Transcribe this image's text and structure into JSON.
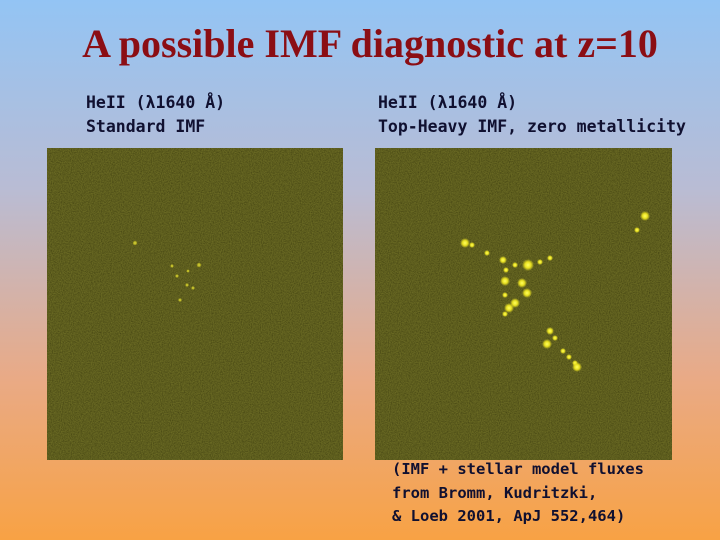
{
  "title": "A possible IMF diagnostic at z=10",
  "panels": [
    {
      "caption": [
        "HeII (λ1640 Å)",
        "Standard IMF"
      ]
    },
    {
      "caption": [
        "HeII (λ1640 Å)",
        "Top-Heavy IMF, zero metallicity"
      ]
    }
  ],
  "credit": [
    "(IMF + stellar model fluxes",
    "from Bromm, Kudritzki,",
    "& Loeb 2001, ApJ 552,464)"
  ]
}
